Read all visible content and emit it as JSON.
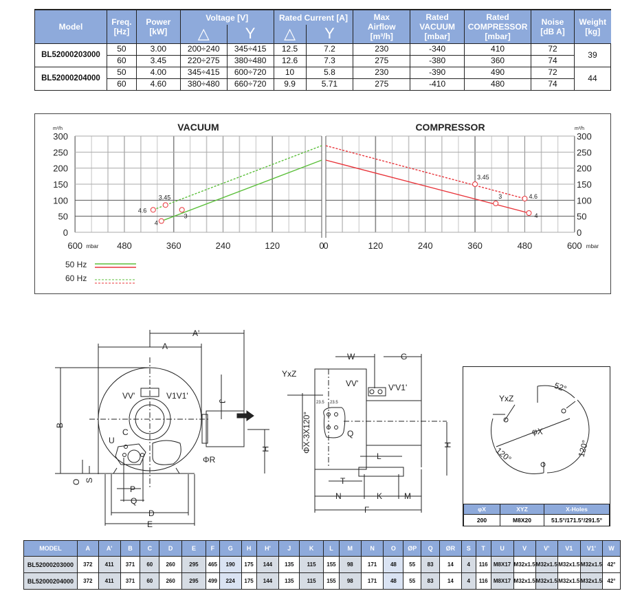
{
  "spec_table": {
    "headers": {
      "model": "Model",
      "freq": [
        "Freq.",
        "[Hz]"
      ],
      "power": [
        "Power",
        "[kW]"
      ],
      "voltage": "Voltage [V]",
      "current": "Rated Current [A]",
      "delta": "△",
      "star": "Y",
      "airflow": [
        "Max",
        "Airflow",
        "[m³/h]"
      ],
      "vacuum": [
        "Rated",
        "VACUUM",
        "[mbar]"
      ],
      "compressor": [
        "Rated",
        "COMPRESSOR",
        "[mbar]"
      ],
      "noise": [
        "Noise",
        "[dB A]"
      ],
      "weight": [
        "Weight",
        "[kg]"
      ]
    },
    "models": [
      {
        "model": "BL52000203000",
        "weight": "39",
        "rows": [
          {
            "freq": "50",
            "power": "3.00",
            "v_delta": "200÷240",
            "v_star": "345÷415",
            "i_delta": "12.5",
            "i_star": "7.2",
            "airflow": "230",
            "vacuum": "-340",
            "compressor": "410",
            "noise": "72"
          },
          {
            "freq": "60",
            "power": "3.45",
            "v_delta": "220÷275",
            "v_star": "380÷480",
            "i_delta": "12.6",
            "i_star": "7.3",
            "airflow": "275",
            "vacuum": "-380",
            "compressor": "360",
            "noise": "74"
          }
        ]
      },
      {
        "model": "BL52000204000",
        "weight": "44",
        "rows": [
          {
            "freq": "50",
            "power": "4.00",
            "v_delta": "345÷415",
            "v_star": "600÷720",
            "i_delta": "10",
            "i_star": "5.8",
            "airflow": "230",
            "vacuum": "-390",
            "compressor": "490",
            "noise": "72"
          },
          {
            "freq": "60",
            "power": "4.60",
            "v_delta": "380÷480",
            "v_star": "660÷720",
            "i_delta": "9.9",
            "i_star": "5.71",
            "airflow": "275",
            "vacuum": "-410",
            "compressor": "480",
            "noise": "74"
          }
        ]
      }
    ]
  },
  "chart_data": [
    {
      "type": "line",
      "title": "VACUUM",
      "xlabel": "mbar",
      "ylabel": "m³/h",
      "xlim": [
        600,
        0
      ],
      "ylim": [
        0,
        300
      ],
      "xticks": [
        "600",
        "480",
        "360",
        "240",
        "120",
        "0"
      ],
      "yticks": [
        "0",
        "50",
        "100",
        "150",
        "200",
        "250",
        "300"
      ],
      "grid": true,
      "series": [
        {
          "name": "50 Hz",
          "color": "#5bbf3a",
          "style": "solid",
          "points": [
            [
              390,
              35
            ],
            [
              0,
              225
            ]
          ],
          "markers": [
            {
              "x": 390,
              "y": 35,
              "label": "4"
            },
            {
              "x": 340,
              "y": 70,
              "label": "3"
            }
          ]
        },
        {
          "name": "60 Hz",
          "color": "#5bbf3a",
          "style": "dashed",
          "points": [
            [
              410,
              70
            ],
            [
              0,
              270
            ]
          ],
          "markers": [
            {
              "x": 410,
              "y": 70,
              "label": "4.6"
            },
            {
              "x": 380,
              "y": 85,
              "label": "3.45"
            }
          ]
        }
      ]
    },
    {
      "type": "line",
      "title": "COMPRESSOR",
      "xlabel": "mbar",
      "ylabel": "m³/h",
      "xlim": [
        0,
        600
      ],
      "ylim": [
        0,
        300
      ],
      "xticks": [
        "0",
        "120",
        "240",
        "360",
        "480",
        "600"
      ],
      "yticks": [
        "0",
        "50",
        "100",
        "150",
        "200",
        "250",
        "300"
      ],
      "grid": true,
      "series": [
        {
          "name": "50 Hz",
          "color": "#e8343a",
          "style": "solid",
          "points": [
            [
              0,
              225
            ],
            [
              490,
              60
            ]
          ],
          "markers": [
            {
              "x": 410,
              "y": 90,
              "label": "3"
            },
            {
              "x": 490,
              "y": 60,
              "label": "4"
            }
          ]
        },
        {
          "name": "60 Hz",
          "color": "#e8343a",
          "style": "dashed",
          "points": [
            [
              0,
              270
            ],
            [
              480,
              105
            ]
          ],
          "markers": [
            {
              "x": 360,
              "y": 150,
              "label": "3.45"
            },
            {
              "x": 480,
              "y": 105,
              "label": "4.6"
            }
          ]
        }
      ]
    }
  ],
  "legend": {
    "hz50": "50 Hz",
    "hz60": "60 Hz",
    "green": "#5bbf3a",
    "red": "#e8343a"
  },
  "front_view": {
    "A": "A",
    "A2": "A'",
    "B": "B",
    "C": "C",
    "D": "D",
    "E": "E",
    "J": "J",
    "H": "H",
    "O": "O",
    "S": "S",
    "U": "U",
    "P": "P",
    "Q": "Q",
    "R": "ΦR",
    "VV": "VV'",
    "V1V1": "V1V1'"
  },
  "side_view": {
    "W": "W",
    "G": "G",
    "YxZ": "YxZ",
    "VV": "VV'",
    "V1": "V'V1'",
    "flange": "ΦX-3X120°",
    "ang": "23.5",
    "H": "H",
    "L": "L",
    "T": "T",
    "N": "N",
    "K": "K",
    "M": "M",
    "F": "F",
    "Q": "Q"
  },
  "hole_diagram": {
    "YxZ": "YxZ",
    "X": "φX",
    "a52": "52°",
    "a120a": "120°",
    "a120b": "120°",
    "headers": [
      "φX",
      "XYZ",
      "X-Holes"
    ],
    "values": [
      "200",
      "M8X20",
      "51.5°/171.5°/291.5°"
    ]
  },
  "dim_table": {
    "headers": [
      "MODEL",
      "A",
      "A'",
      "B",
      "C",
      "D",
      "E",
      "F",
      "G",
      "H",
      "H'",
      "J",
      "K",
      "L",
      "M",
      "N",
      "O",
      "ØP",
      "Q",
      "ØR",
      "S",
      "T",
      "U",
      "V",
      "V'",
      "V1",
      "V1'",
      "W"
    ],
    "rows": [
      [
        "BL52000203000",
        "372",
        "411",
        "371",
        "60",
        "260",
        "295",
        "465",
        "190",
        "175",
        "144",
        "135",
        "115",
        "155",
        "98",
        "171",
        "48",
        "55",
        "83",
        "14",
        "4",
        "116",
        "M8X17",
        "M32x1.5",
        "M32x1.5",
        "M32x1.5",
        "M32x1.5",
        "42°"
      ],
      [
        "BL52000204000",
        "372",
        "411",
        "371",
        "60",
        "260",
        "295",
        "499",
        "224",
        "175",
        "144",
        "135",
        "115",
        "155",
        "98",
        "171",
        "48",
        "55",
        "83",
        "14",
        "4",
        "116",
        "M8X17",
        "M32x1.5",
        "M32x1.5",
        "M32x1.5",
        "M32x1.5",
        "42°"
      ]
    ]
  }
}
